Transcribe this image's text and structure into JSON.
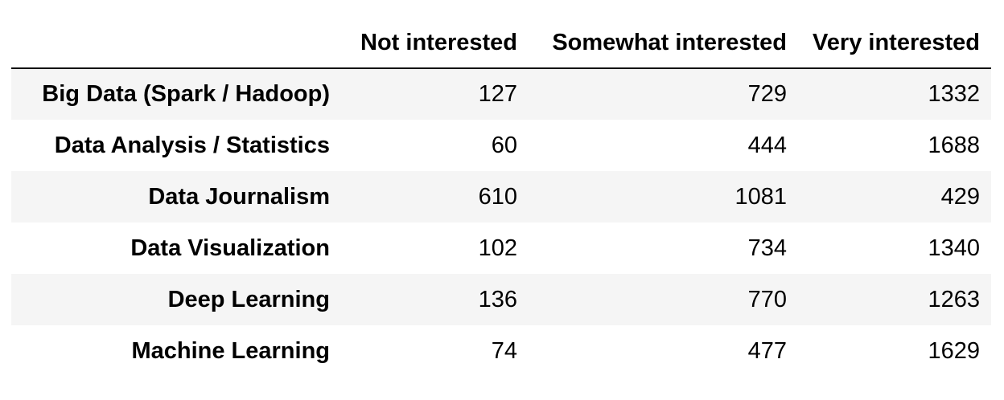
{
  "table": {
    "index_header": "",
    "columns": [
      "Not interested",
      "Somewhat interested",
      "Very interested"
    ],
    "rows": [
      {
        "label": "Big Data (Spark / Hadoop)",
        "values": [
          "127",
          "729",
          "1332"
        ]
      },
      {
        "label": "Data Analysis / Statistics",
        "values": [
          "60",
          "444",
          "1688"
        ]
      },
      {
        "label": "Data Journalism",
        "values": [
          "610",
          "1081",
          "429"
        ]
      },
      {
        "label": "Data Visualization",
        "values": [
          "102",
          "734",
          "1340"
        ]
      },
      {
        "label": "Deep Learning",
        "values": [
          "136",
          "770",
          "1263"
        ]
      },
      {
        "label": "Machine Learning",
        "values": [
          "74",
          "477",
          "1629"
        ]
      }
    ]
  }
}
